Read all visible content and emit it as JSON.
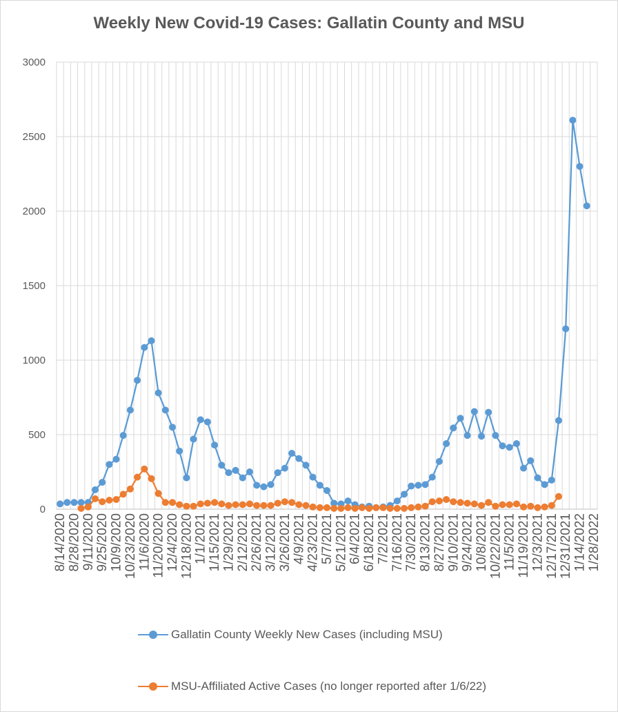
{
  "chart_data": {
    "type": "line",
    "title": "Weekly New Covid-19 Cases: Gallatin County and MSU",
    "xlabel": "",
    "ylabel": "",
    "ylim": [
      0,
      3000
    ],
    "yticks": [
      0,
      500,
      1000,
      1500,
      2000,
      2500,
      3000
    ],
    "grid": true,
    "legend_position": "bottom",
    "x_tick_labels": [
      "8/14/2020",
      "8/28/2020",
      "9/11/2020",
      "9/25/2020",
      "10/9/2020",
      "10/23/2020",
      "11/6/2020",
      "11/20/2020",
      "12/4/2020",
      "12/18/2020",
      "1/1/2021",
      "1/15/2021",
      "1/29/2021",
      "2/12/2021",
      "2/26/2021",
      "3/12/2021",
      "3/26/2021",
      "4/9/2021",
      "4/23/2021",
      "5/7/2021",
      "5/21/2021",
      "6/4/2021",
      "6/18/2021",
      "7/2/2021",
      "7/16/2021",
      "7/30/2021",
      "8/13/2021",
      "8/27/2021",
      "9/10/2021",
      "9/24/2021",
      "10/8/2021",
      "10/22/2021",
      "11/5/2021",
      "11/19/2021",
      "12/3/2021",
      "12/17/2021",
      "12/31/2021",
      "1/14/2022",
      "1/28/2022"
    ],
    "weeks": 77,
    "series": [
      {
        "name": "Gallatin County Weekly New Cases (including MSU)",
        "color": "#5b9bd5",
        "start_index": 0,
        "values": [
          35,
          45,
          45,
          45,
          45,
          130,
          180,
          300,
          335,
          495,
          665,
          865,
          1085,
          1130,
          780,
          665,
          550,
          390,
          210,
          470,
          600,
          585,
          430,
          295,
          245,
          260,
          210,
          250,
          160,
          150,
          165,
          245,
          275,
          375,
          340,
          295,
          215,
          160,
          125,
          40,
          35,
          55,
          30,
          15,
          20,
          10,
          15,
          25,
          55,
          100,
          155,
          160,
          165,
          215,
          320,
          440,
          545,
          610,
          495,
          655,
          490,
          650,
          495,
          425,
          415,
          440,
          275,
          325,
          210,
          165,
          195,
          595,
          1210,
          2610,
          2300,
          2035
        ]
      },
      {
        "name": "MSU-Affiliated Active Cases (no longer reported after 1/6/22)",
        "color": "#ed7d31",
        "start_index": 3,
        "values": [
          5,
          15,
          70,
          50,
          60,
          65,
          100,
          135,
          215,
          270,
          205,
          105,
          45,
          45,
          30,
          20,
          20,
          35,
          40,
          45,
          35,
          25,
          30,
          30,
          35,
          25,
          25,
          25,
          40,
          50,
          45,
          30,
          25,
          15,
          10,
          10,
          5,
          5,
          10,
          5,
          10,
          5,
          10,
          10,
          5,
          5,
          5,
          10,
          15,
          20,
          50,
          55,
          65,
          50,
          45,
          40,
          35,
          25,
          45,
          20,
          30,
          30,
          35,
          15,
          20,
          10,
          15,
          25,
          85
        ]
      }
    ]
  },
  "legend": {
    "items": [
      {
        "label": "Gallatin County Weekly New Cases (including MSU)",
        "color": "#5b9bd5"
      },
      {
        "label": "MSU-Affiliated Active Cases (no longer reported after 1/6/22)",
        "color": "#ed7d31"
      }
    ]
  }
}
